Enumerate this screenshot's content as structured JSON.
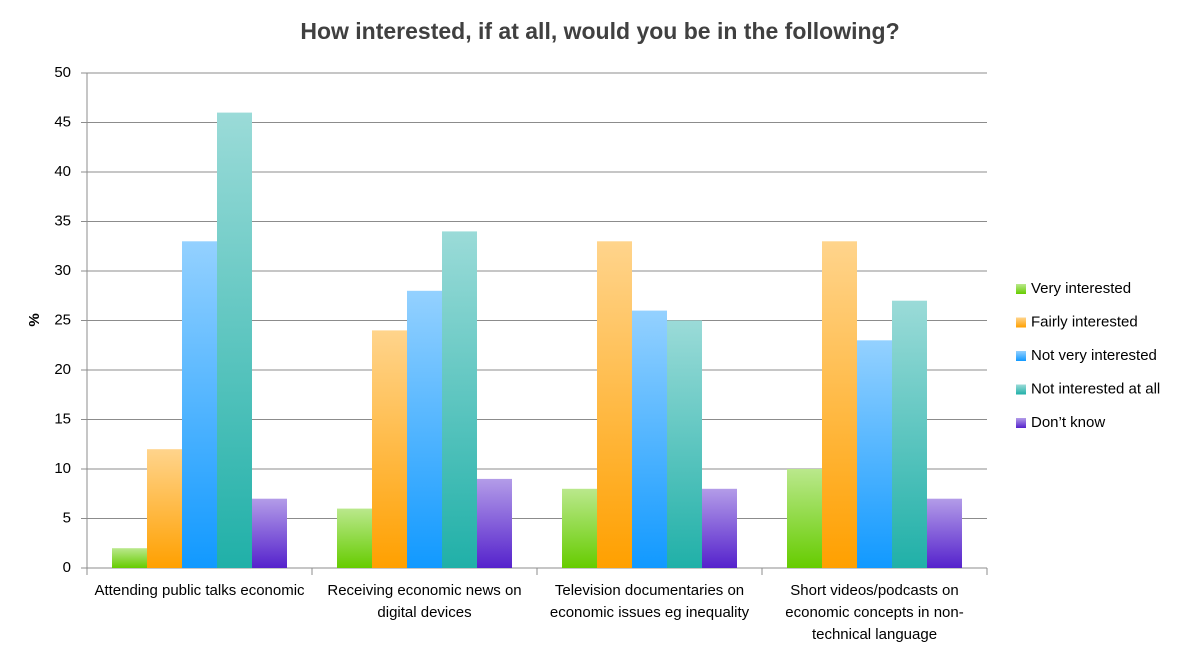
{
  "chart_data": {
    "type": "bar",
    "title": "How interested, if at all, would you be in the following?",
    "y_label": "%",
    "categories": [
      "Attending public talks economic",
      "Receiving economic news on digital devices",
      "Television documentaries on economic issues eg inequality",
      "Short videos/podcasts on economic concepts in non-technical language"
    ],
    "series": [
      {
        "name": "Very interested",
        "color": "#66cc00",
        "values": [
          2,
          6,
          8,
          10
        ]
      },
      {
        "name": "Fairly interested",
        "color": "#ffa000",
        "values": [
          12,
          24,
          33,
          33
        ]
      },
      {
        "name": "Not very interested",
        "color": "#1199ff",
        "values": [
          33,
          28,
          26,
          23
        ]
      },
      {
        "name": "Not interested at all",
        "color": "#20b0a8",
        "values": [
          46,
          34,
          25,
          27
        ]
      },
      {
        "name": "Don’t know",
        "color": "#5522cc",
        "values": [
          7,
          9,
          8,
          7
        ]
      }
    ],
    "ylim": [
      0,
      50
    ],
    "yticks": [
      0,
      5,
      10,
      15,
      20,
      25,
      30,
      35,
      40,
      45,
      50
    ],
    "grid": true,
    "legend": "right"
  }
}
